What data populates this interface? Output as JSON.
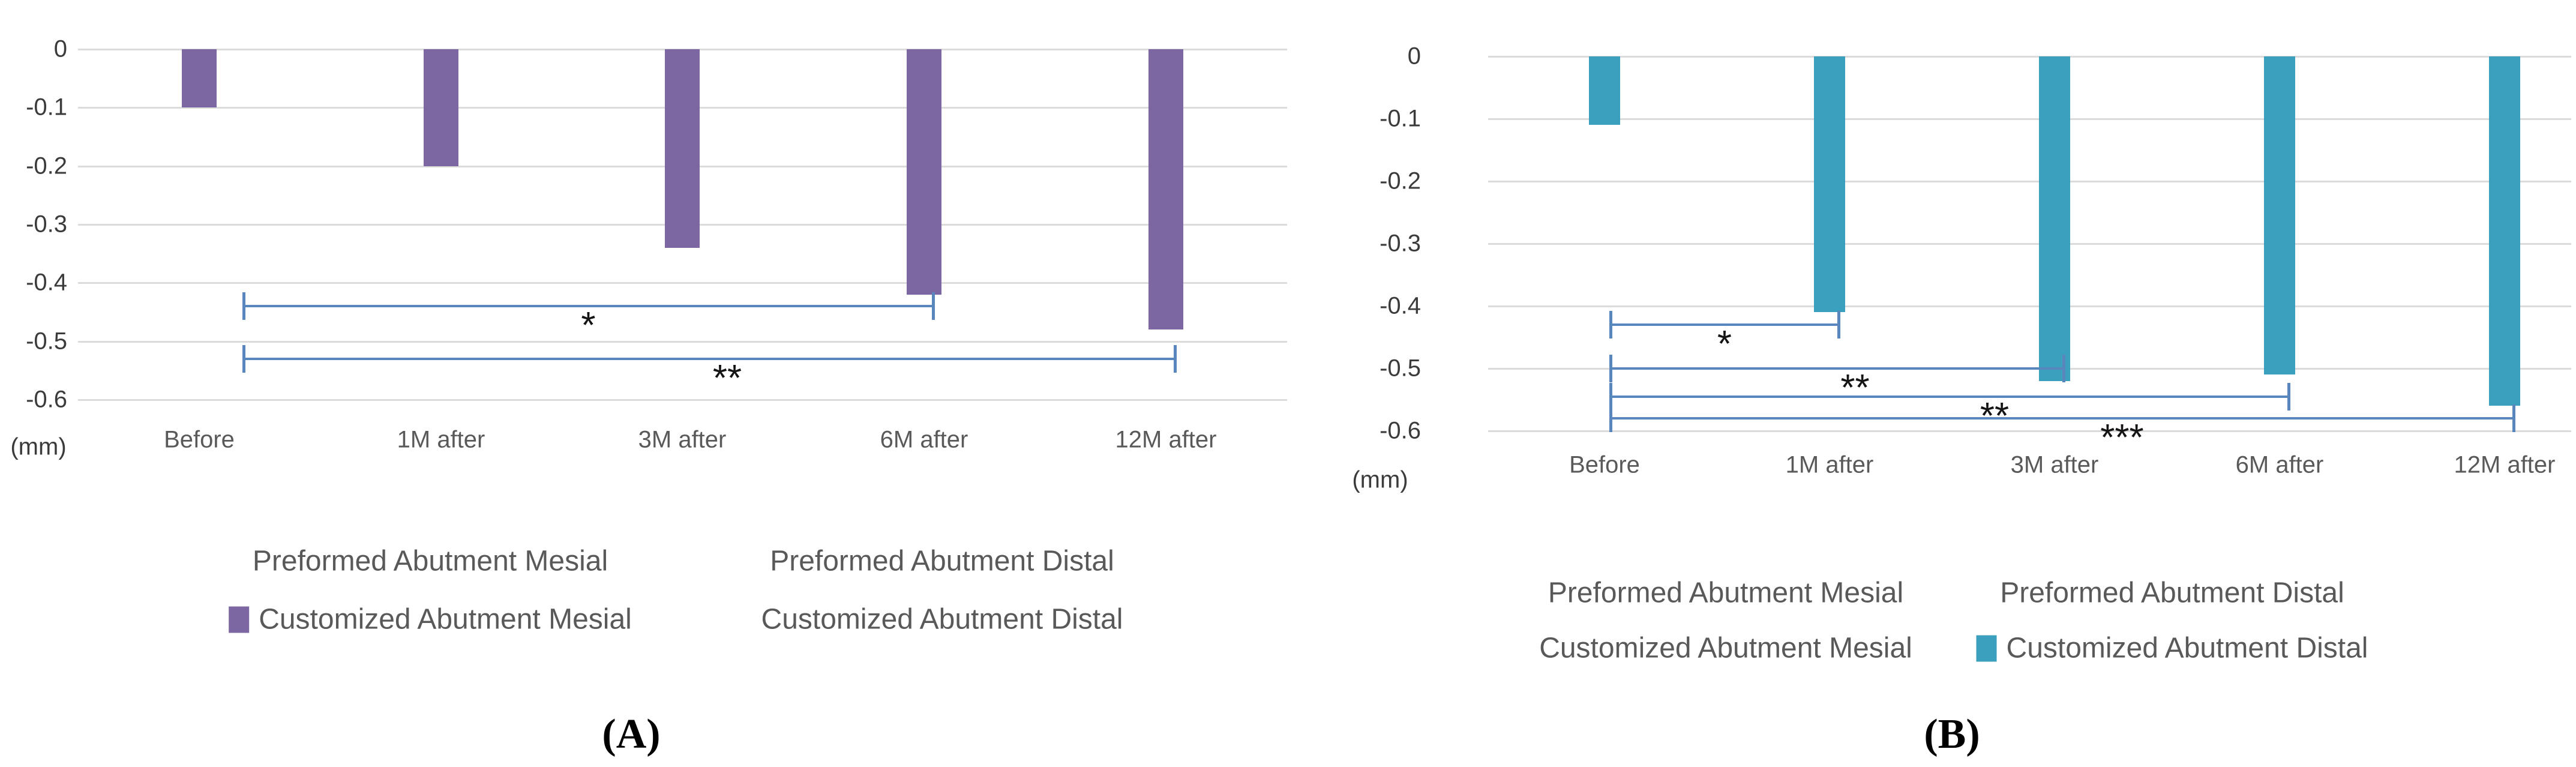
{
  "figure_title": "",
  "colors": {
    "purple_bar": "#7c67a2",
    "teal_bar": "#3ba0be",
    "gridline": "#dbdbdb",
    "bracket_blue": "#5a86be",
    "axis_text": "#3b3b3b",
    "legend_text": "#595959"
  },
  "chart_data": [
    {
      "type": "bar",
      "panel": "A",
      "caption": "(A)",
      "ylabel": "(mm)",
      "title": "",
      "xlabel": "",
      "categories": [
        "Before",
        "1M after",
        "3M after",
        "6M after",
        "12M after"
      ],
      "series": [
        {
          "name": "Customized Abutment Mesial",
          "values": [
            -0.1,
            -0.2,
            -0.34,
            -0.42,
            -0.48
          ]
        }
      ],
      "bar_color": "#7c67a2",
      "ylim": [
        -0.6,
        0
      ],
      "yticks": [
        "0",
        "-0.1",
        "-0.2",
        "-0.3",
        "-0.4",
        "-0.5",
        "-0.6"
      ],
      "grid": true,
      "legend_position": "bottom",
      "legend": [
        {
          "label": "Preformed Abutment Mesial",
          "swatch": false
        },
        {
          "label": "Preformed Abutment Distal",
          "swatch": false
        },
        {
          "label": "Customized Abutment Mesial",
          "swatch": true
        },
        {
          "label": "Customized Abutment Distal",
          "swatch": false
        }
      ],
      "significance_brackets": [
        {
          "from": "Before",
          "to": "6M after",
          "level": -0.44,
          "label": "*"
        },
        {
          "from": "Before",
          "to": "12M after",
          "level": -0.53,
          "label": "**"
        }
      ]
    },
    {
      "type": "bar",
      "panel": "B",
      "caption": "(B)",
      "ylabel": "(mm)",
      "title": "",
      "xlabel": "",
      "categories": [
        "Before",
        "1M after",
        "3M after",
        "6M after",
        "12M after"
      ],
      "series": [
        {
          "name": "Customized Abutment Distal",
          "values": [
            -0.11,
            -0.41,
            -0.52,
            -0.51,
            -0.56
          ]
        }
      ],
      "bar_color": "#3ba0be",
      "ylim": [
        -0.6,
        0
      ],
      "yticks": [
        "0",
        "-0.1",
        "-0.2",
        "-0.3",
        "-0.4",
        "-0.5",
        "-0.6"
      ],
      "grid": true,
      "legend_position": "bottom",
      "legend": [
        {
          "label": "Preformed Abutment Mesial",
          "swatch": false
        },
        {
          "label": "Preformed Abutment Distal",
          "swatch": false
        },
        {
          "label": "Customized Abutment Mesial",
          "swatch": false
        },
        {
          "label": "Customized Abutment Distal",
          "swatch": true
        }
      ],
      "significance_brackets": [
        {
          "from": "Before",
          "to": "1M after",
          "level": -0.43,
          "label": "*"
        },
        {
          "from": "Before",
          "to": "3M after",
          "level": -0.5,
          "label": "**"
        },
        {
          "from": "Before",
          "to": "6M after",
          "level": -0.545,
          "label": "**"
        },
        {
          "from": "Before",
          "to": "12M after",
          "level": -0.58,
          "label": "***"
        }
      ]
    }
  ]
}
